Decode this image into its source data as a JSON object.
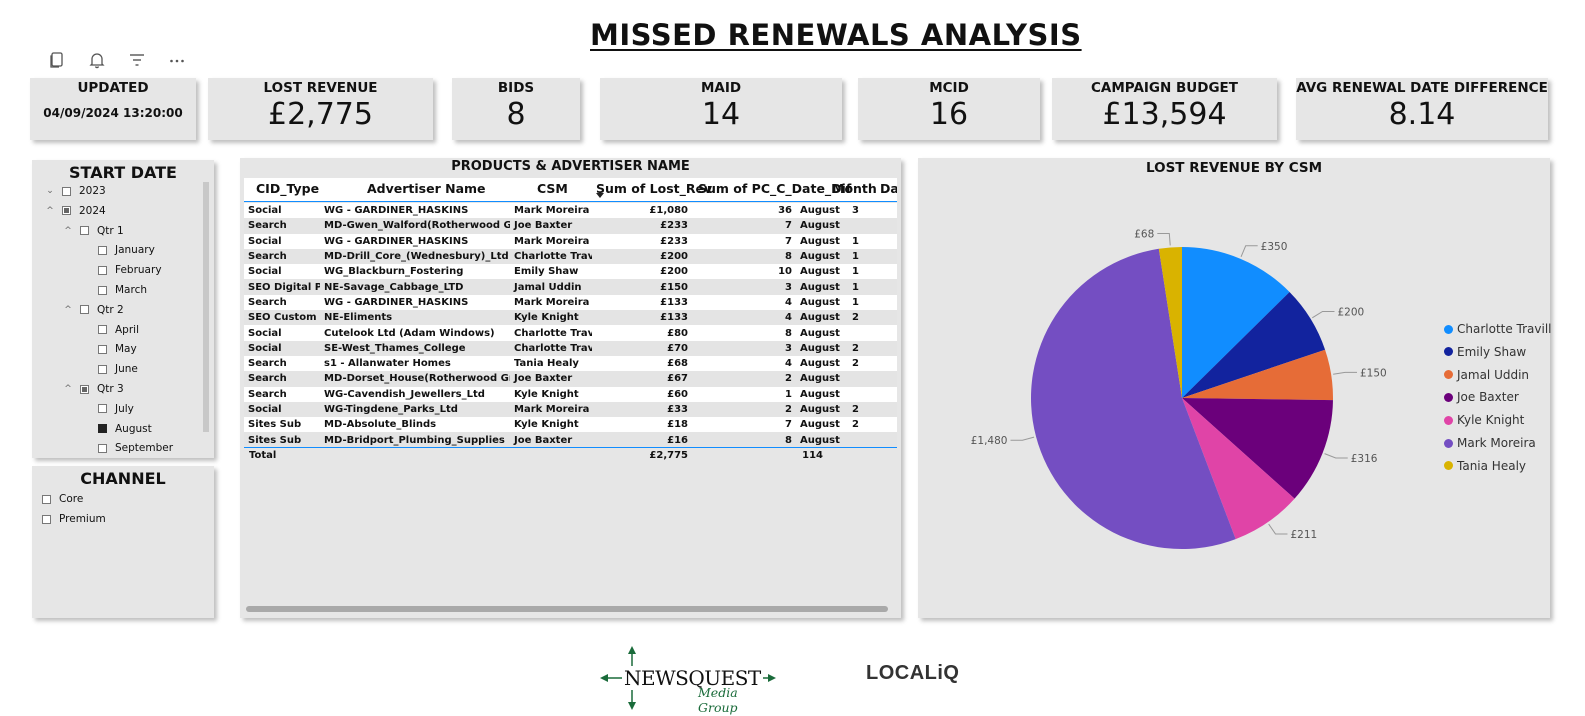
{
  "title": "MISSED RENEWALS ANALYSIS",
  "toolbar": {
    "icons": [
      "copy-icon",
      "bell-icon",
      "filter-icon",
      "more-icon"
    ]
  },
  "cards": {
    "updated": {
      "label": "UPDATED",
      "value": "04/09/2024 13:20:00"
    },
    "lost_revenue": {
      "label": "LOST REVENUE",
      "value": "£2,775"
    },
    "bids": {
      "label": "BIDS",
      "value": "8"
    },
    "maid": {
      "label": "MAID",
      "value": "14"
    },
    "mcid": {
      "label": "MCID",
      "value": "16"
    },
    "campaign_budget": {
      "label": "CAMPAIGN BUDGET",
      "value": "£13,594"
    },
    "avg_renewal": {
      "label": "AVG RENEWAL DATE DIFFERENCE",
      "value": "8.14"
    }
  },
  "start_date": {
    "title": "START DATE",
    "items": [
      {
        "label": "2023",
        "state": "empty"
      },
      {
        "label": "2024",
        "state": "partial"
      },
      {
        "label": "Qtr 1",
        "state": "empty"
      },
      {
        "label": "January",
        "state": "empty"
      },
      {
        "label": "February",
        "state": "empty"
      },
      {
        "label": "March",
        "state": "empty"
      },
      {
        "label": "Qtr 2",
        "state": "empty"
      },
      {
        "label": "April",
        "state": "empty"
      },
      {
        "label": "May",
        "state": "empty"
      },
      {
        "label": "June",
        "state": "empty"
      },
      {
        "label": "Qtr 3",
        "state": "partial"
      },
      {
        "label": "July",
        "state": "empty"
      },
      {
        "label": "August",
        "state": "full"
      },
      {
        "label": "September",
        "state": "empty"
      }
    ]
  },
  "channel": {
    "title": "CHANNEL",
    "items": [
      "Core",
      "Premium"
    ]
  },
  "table": {
    "title": "PRODUCTS & ADVERTISER NAME",
    "headers": [
      "CID_Type",
      "Advertiser Name",
      "CSM",
      "Sum of Lost_Rev",
      "Sum of PC_C_Date_Dif",
      "Month",
      "Day"
    ],
    "rows": [
      [
        "Social",
        "WG - GARDINER_HASKINS",
        "Mark Moreira",
        "£1,080",
        "36",
        "August",
        "3"
      ],
      [
        "Search",
        "MD-Gwen_Walford(Rotherwood Group)",
        "Joe Baxter",
        "£233",
        "7",
        "August",
        ""
      ],
      [
        "Social",
        "WG - GARDINER_HASKINS",
        "Mark Moreira",
        "£233",
        "7",
        "August",
        "1"
      ],
      [
        "Search",
        "MD-Drill_Core_(Wednesbury)_Ltd",
        "Charlotte Travill",
        "£200",
        "8",
        "August",
        "1"
      ],
      [
        "Social",
        "WG_Blackburn_Fostering",
        "Emily Shaw",
        "£200",
        "10",
        "August",
        "1"
      ],
      [
        "SEO Digital PR",
        "NE-Savage_Cabbage_LTD",
        "Jamal Uddin",
        "£150",
        "3",
        "August",
        "1"
      ],
      [
        "Search",
        "WG - GARDINER_HASKINS",
        "Mark Moreira",
        "£133",
        "4",
        "August",
        "1"
      ],
      [
        "SEO Custom",
        "NE-Eliments",
        "Kyle Knight",
        "£133",
        "4",
        "August",
        "2"
      ],
      [
        "Social",
        "Cutelook Ltd (Adam Windows)",
        "Charlotte Travill",
        "£80",
        "8",
        "August",
        ""
      ],
      [
        "Social",
        "SE-West_Thames_College",
        "Charlotte Travill",
        "£70",
        "3",
        "August",
        "2"
      ],
      [
        "Search",
        "s1 - Allanwater Homes",
        "Tania Healy",
        "£68",
        "4",
        "August",
        "2"
      ],
      [
        "Search",
        "MD-Dorset_House(Rotherwood Group)",
        "Joe Baxter",
        "£67",
        "2",
        "August",
        ""
      ],
      [
        "Search",
        "WG-Cavendish_Jewellers_Ltd",
        "Kyle Knight",
        "£60",
        "1",
        "August",
        ""
      ],
      [
        "Social",
        "WG-Tingdene_Parks_Ltd",
        "Mark Moreira",
        "£33",
        "2",
        "August",
        "2"
      ],
      [
        "Sites Sub",
        "MD-Absolute_Blinds",
        "Kyle Knight",
        "£18",
        "7",
        "August",
        "2"
      ],
      [
        "Sites Sub",
        "MD-Bridport_Plumbing_Supplies",
        "Joe Baxter",
        "£16",
        "8",
        "August",
        ""
      ]
    ],
    "total": {
      "label": "Total",
      "lost_rev": "£2,775",
      "date_dif": "114"
    }
  },
  "chart_data": {
    "type": "pie",
    "title": "LOST REVENUE BY CSM",
    "slices": [
      {
        "name": "Charlotte Travill",
        "value": 350,
        "label": "£350",
        "color": "#118DFF"
      },
      {
        "name": "Emily Shaw",
        "value": 200,
        "label": "£200",
        "color": "#12239E"
      },
      {
        "name": "Jamal Uddin",
        "value": 150,
        "label": "£150",
        "color": "#E66C37"
      },
      {
        "name": "Joe Baxter",
        "value": 316,
        "label": "£316",
        "color": "#6B007B"
      },
      {
        "name": "Kyle Knight",
        "value": 211,
        "label": "£211",
        "color": "#E044A7"
      },
      {
        "name": "Mark Moreira",
        "value": 1480,
        "label": "£1,480",
        "color": "#744EC2"
      },
      {
        "name": "Tania Healy",
        "value": 68,
        "label": "£68",
        "color": "#D9B300"
      }
    ],
    "legend_position": "right"
  },
  "footer": {
    "newsquest_main": "NEWSQUEST",
    "newsquest_sub": "Media Group",
    "localiq": "LOCALiQ"
  }
}
